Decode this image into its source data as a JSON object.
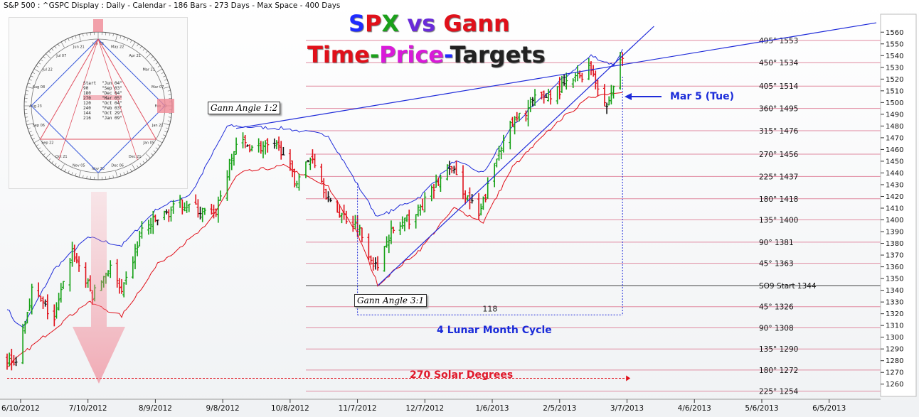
{
  "header": {
    "text": "S&P 500 : ^GSPC Display :  Daily  - Calendar - 186 Bars - 273 Days -  Max Space - 400 Days"
  },
  "title": {
    "line1": [
      {
        "text": "S",
        "color": "#1f2bff"
      },
      {
        "text": "P",
        "color": "#e0101a"
      },
      {
        "text": "X",
        "color": "#1aa01a"
      },
      {
        "text": " vs ",
        "color": "#6a2bd9"
      },
      {
        "text": "Gann",
        "color": "#e0101a"
      }
    ],
    "line2": [
      {
        "text": "Time",
        "color": "#e0101a"
      },
      {
        "text": "-",
        "color": "#1aa01a"
      },
      {
        "text": "Price",
        "color": "#d91ad9"
      },
      {
        "text": "-",
        "color": "#1f2bff"
      },
      {
        "text": "Targets",
        "color": "#222222"
      }
    ]
  },
  "wheel": {
    "table_rows": [
      [
        "Start",
        "Jun 04"
      ],
      [
        "90",
        "Sep 03"
      ],
      [
        "180",
        "Dec 04"
      ],
      [
        "270",
        "Mar 05"
      ],
      [
        "120",
        "Oct 04"
      ],
      [
        "240",
        "Feb 03"
      ],
      [
        "144",
        "Oct 29"
      ],
      [
        "216",
        "Jan 09"
      ]
    ],
    "highlight_row": 3,
    "date_labels": [
      "Jun 06",
      "May 22",
      "Apr 21",
      "Mar 21",
      "Mar 07",
      "Feb 20",
      "Jan 21",
      "Jan 05",
      "Dec 21",
      "Dec 06",
      "Nov 20",
      "Nov 05",
      "Oct 21",
      "Sep 22",
      "Sep 06",
      "Aug 23",
      "Aug 08",
      "Jul 22",
      "Jul 07",
      "Jun 21"
    ]
  },
  "annotations": {
    "angle_12": "Gann Angle 1:2",
    "angle_31": "Gann Angle 3:1",
    "mar5": "Mar 5 (Tue)",
    "bars_count": "118",
    "lunar": "4 Lunar Month Cycle",
    "solar": "270 Solar Degrees"
  },
  "colors": {
    "up_bar": "#14a014",
    "down_bar": "#e0101a",
    "flat_bar": "#111111",
    "upper_band": "#1f2bd9",
    "lower_band": "#e0101a",
    "gann_line": "#1f2bd9",
    "level_line": "#e08aa0",
    "sq9_line": "#444444"
  },
  "chart_data": {
    "type": "ohlc",
    "y_axis": {
      "min": 1255,
      "max": 1565,
      "ticks": [
        1260,
        1270,
        1280,
        1290,
        1300,
        1310,
        1320,
        1330,
        1340,
        1350,
        1360,
        1370,
        1380,
        1390,
        1400,
        1410,
        1420,
        1430,
        1440,
        1450,
        1460,
        1470,
        1480,
        1490,
        1500,
        1510,
        1520,
        1530,
        1540,
        1550,
        1560
      ]
    },
    "x_axis": {
      "start": "2012-06-04",
      "end": "2013-06-26",
      "tick_labels": [
        "6/10/2012",
        "7/10/2012",
        "8/9/2012",
        "9/8/2012",
        "10/8/2012",
        "11/7/2012",
        "12/7/2012",
        "1/6/2013",
        "2/5/2013",
        "3/7/2013",
        "4/6/2013",
        "5/6/2013",
        "6/5/2013"
      ]
    },
    "gann_levels": [
      {
        "label": "495° 1553",
        "price": 1553
      },
      {
        "label": "450° 1534",
        "price": 1534
      },
      {
        "label": "405° 1514",
        "price": 1514
      },
      {
        "label": "360° 1495",
        "price": 1495
      },
      {
        "label": "315° 1476",
        "price": 1476
      },
      {
        "label": "270° 1456",
        "price": 1456
      },
      {
        "label": "225° 1437",
        "price": 1437
      },
      {
        "label": "180° 1418",
        "price": 1418
      },
      {
        "label": "135° 1400",
        "price": 1400
      },
      {
        "label": "90° 1381",
        "price": 1381
      },
      {
        "label": "45° 1363",
        "price": 1363
      },
      {
        "label": "SO9 Start 1344",
        "price": 1344,
        "start": true
      },
      {
        "label": "45° 1326",
        "price": 1326
      },
      {
        "label": "90° 1308",
        "price": 1308
      },
      {
        "label": "135° 1290",
        "price": 1290
      },
      {
        "label": "180° 1272",
        "price": 1272
      },
      {
        "label": "225° 1254",
        "price": 1254
      }
    ],
    "close_keypoints": [
      [
        "2012-06-04",
        1282
      ],
      [
        "2012-06-07",
        1275
      ],
      [
        "2012-06-15",
        1340
      ],
      [
        "2012-06-25",
        1315
      ],
      [
        "2012-07-03",
        1374
      ],
      [
        "2012-07-12",
        1335
      ],
      [
        "2012-07-20",
        1362
      ],
      [
        "2012-07-25",
        1335
      ],
      [
        "2012-08-03",
        1391
      ],
      [
        "2012-08-21",
        1415
      ],
      [
        "2012-09-04",
        1402
      ],
      [
        "2012-09-14",
        1465
      ],
      [
        "2012-10-05",
        1460
      ],
      [
        "2012-10-10",
        1432
      ],
      [
        "2012-10-18",
        1455
      ],
      [
        "2012-10-26",
        1412
      ],
      [
        "2012-11-07",
        1395
      ],
      [
        "2012-11-16",
        1356
      ],
      [
        "2012-11-20",
        1386
      ],
      [
        "2012-12-04",
        1407
      ],
      [
        "2012-12-18",
        1446
      ],
      [
        "2012-12-31",
        1402
      ],
      [
        "2013-01-11",
        1472
      ],
      [
        "2013-01-25",
        1502
      ],
      [
        "2013-02-05",
        1511
      ],
      [
        "2013-02-19",
        1530
      ],
      [
        "2013-02-26",
        1496
      ],
      [
        "2013-03-05",
        1540
      ]
    ],
    "upper_band_keypoints": [
      [
        "2012-06-04",
        1325
      ],
      [
        "2012-06-10",
        1305
      ],
      [
        "2012-06-25",
        1358
      ],
      [
        "2012-07-10",
        1385
      ],
      [
        "2012-07-25",
        1378
      ],
      [
        "2012-08-10",
        1410
      ],
      [
        "2012-08-25",
        1422
      ],
      [
        "2012-09-10",
        1480
      ],
      [
        "2012-10-05",
        1478
      ],
      [
        "2012-10-25",
        1472
      ],
      [
        "2012-11-07",
        1430
      ],
      [
        "2012-11-16",
        1402
      ],
      [
        "2012-12-05",
        1420
      ],
      [
        "2012-12-20",
        1450
      ],
      [
        "2013-01-02",
        1440
      ],
      [
        "2013-01-15",
        1480
      ],
      [
        "2013-02-05",
        1518
      ],
      [
        "2013-02-19",
        1540
      ],
      [
        "2013-03-01",
        1532
      ],
      [
        "2013-03-05",
        1545
      ]
    ],
    "lower_band_keypoints": [
      [
        "2012-06-04",
        1275
      ],
      [
        "2012-06-20",
        1300
      ],
      [
        "2012-07-10",
        1330
      ],
      [
        "2012-07-25",
        1318
      ],
      [
        "2012-08-10",
        1362
      ],
      [
        "2012-09-01",
        1395
      ],
      [
        "2012-09-15",
        1440
      ],
      [
        "2012-10-05",
        1446
      ],
      [
        "2012-10-25",
        1428
      ],
      [
        "2012-11-07",
        1388
      ],
      [
        "2012-11-16",
        1345
      ],
      [
        "2012-12-05",
        1375
      ],
      [
        "2012-12-20",
        1410
      ],
      [
        "2013-01-02",
        1398
      ],
      [
        "2013-01-15",
        1445
      ],
      [
        "2013-02-05",
        1485
      ],
      [
        "2013-02-19",
        1505
      ],
      [
        "2013-03-05",
        1510
      ]
    ],
    "gann_1x2": {
      "from": [
        "2012-09-14",
        1478
      ],
      "to": [
        "2013-06-26",
        1568
      ]
    },
    "gann_3x1": {
      "from": [
        "2012-11-16",
        1344
      ],
      "to": [
        "2013-03-19",
        1565
      ]
    },
    "mar5_date": "2013-03-05",
    "cycle_start": "2012-11-07",
    "solar_start": "2012-06-04",
    "cycle_bracket_price": 1319,
    "solar_bracket_price": 1265
  }
}
